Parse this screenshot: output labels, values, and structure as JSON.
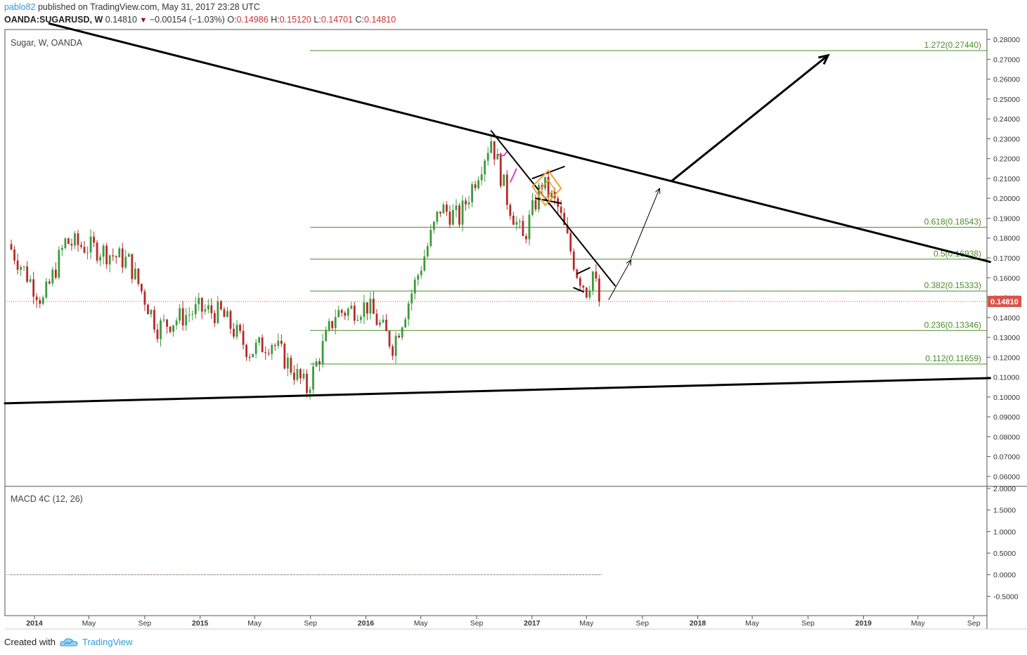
{
  "header": {
    "user": "pablo82",
    "published": "published on TradingView.com, May 31, 2017 23:28 UTC",
    "symbol": "OANDA:SUGARUSD, W",
    "last": "0.14810",
    "change": "−0.00154 (−1.03%)",
    "open_label": "O:",
    "open": "0.14986",
    "high_label": "H:",
    "high": "0.15120",
    "low_label": "L:",
    "low": "0.14701",
    "close_label": "C:",
    "close": "0.14810",
    "down_arrow": "▼"
  },
  "footer": {
    "created_with": "Created with",
    "brand": "TradingView",
    "logo_icon": "tradingview-cloud-icon"
  },
  "chart_data": [
    {
      "type": "candlestick",
      "title": "Sugar, W, OANDA",
      "current_price": 0.1481,
      "current_price_label": "0.14810",
      "ylim": [
        0.055,
        0.285
      ],
      "y_ticks": [
        "0.28000",
        "0.27000",
        "0.26000",
        "0.25000",
        "0.24000",
        "0.23000",
        "0.22000",
        "0.21000",
        "0.20000",
        "0.19000",
        "0.18000",
        "0.17000",
        "0.16000",
        "0.15000",
        "0.14000",
        "0.13000",
        "0.12000",
        "0.11000",
        "0.10000",
        "0.09000",
        "0.08000",
        "0.07000",
        "0.06000"
      ],
      "x_ticks": [
        {
          "label": "2014",
          "bold": true
        },
        {
          "label": "May"
        },
        {
          "label": "Sep"
        },
        {
          "label": "2015",
          "bold": true
        },
        {
          "label": "May"
        },
        {
          "label": "Sep"
        },
        {
          "label": "2016",
          "bold": true
        },
        {
          "label": "May"
        },
        {
          "label": "Sep"
        },
        {
          "label": "2017",
          "bold": true
        },
        {
          "label": "May"
        },
        {
          "label": "Sep"
        },
        {
          "label": "2018",
          "bold": true
        },
        {
          "label": "May"
        },
        {
          "label": "Sep"
        },
        {
          "label": "2019",
          "bold": true
        },
        {
          "label": "May"
        },
        {
          "label": "Sep"
        }
      ],
      "x_range": [
        "2013-10-28",
        "2019-09-30"
      ],
      "fib_levels": [
        {
          "ratio": "1.272",
          "value": 0.2744,
          "label": "1.272(0.27440)"
        },
        {
          "ratio": "0.618",
          "value": 0.18543,
          "label": "0.618(0.18543)"
        },
        {
          "ratio": "0.5",
          "value": 0.16938,
          "label": "0.5(0.16938)"
        },
        {
          "ratio": "0.382",
          "value": 0.15333,
          "label": "0.382(0.15333)"
        },
        {
          "ratio": "0.236",
          "value": 0.13346,
          "label": "0.236(0.13346)"
        },
        {
          "ratio": "0.112",
          "value": 0.11659,
          "label": "0.112(0.11659)"
        }
      ],
      "trendlines": [
        {
          "name": "upper-trendline",
          "from": [
            "2014-02-03",
            0.288
          ],
          "to": [
            "2019-10-07",
            0.168
          ]
        },
        {
          "name": "lower-trendline",
          "from": [
            "2013-10-28",
            0.0968
          ],
          "to": [
            "2019-10-07",
            0.1095
          ]
        }
      ],
      "anchors": [
        {
          "date": "2013-11-04",
          "close": 0.177
        },
        {
          "date": "2014-01-20",
          "close": 0.148
        },
        {
          "date": "2014-03-10",
          "close": 0.178
        },
        {
          "date": "2014-05-26",
          "close": 0.174
        },
        {
          "date": "2014-07-28",
          "close": 0.168
        },
        {
          "date": "2014-09-29",
          "close": 0.135
        },
        {
          "date": "2014-12-29",
          "close": 0.144
        },
        {
          "date": "2015-02-16",
          "close": 0.142
        },
        {
          "date": "2015-04-20",
          "close": 0.123
        },
        {
          "date": "2015-06-08",
          "close": 0.128
        },
        {
          "date": "2015-08-24",
          "close": 0.104
        },
        {
          "date": "2015-10-26",
          "close": 0.142
        },
        {
          "date": "2016-01-04",
          "close": 0.146
        },
        {
          "date": "2016-02-29",
          "close": 0.126
        },
        {
          "date": "2016-04-18",
          "close": 0.157
        },
        {
          "date": "2016-06-13",
          "close": 0.195
        },
        {
          "date": "2016-07-25",
          "close": 0.19
        },
        {
          "date": "2016-10-03",
          "close": 0.23
        },
        {
          "date": "2016-11-07",
          "close": 0.2
        },
        {
          "date": "2016-12-12",
          "close": 0.179
        },
        {
          "date": "2017-01-23",
          "close": 0.208
        },
        {
          "date": "2017-02-27",
          "close": 0.195
        },
        {
          "date": "2017-04-10",
          "close": 0.163
        },
        {
          "date": "2017-05-01",
          "close": 0.154
        },
        {
          "date": "2017-05-15",
          "close": 0.163
        },
        {
          "date": "2017-05-29",
          "close": 0.1481
        }
      ]
    },
    {
      "type": "line",
      "title": "MACD 4C (12, 26)",
      "ylim": [
        -0.95,
        2.05
      ],
      "y_ticks": [
        "2.0000",
        "1.5000",
        "1.0000",
        "0.5000",
        "0.0000",
        "-0.5000"
      ],
      "series": [
        {
          "values": [
            0.0
          ]
        }
      ]
    }
  ]
}
